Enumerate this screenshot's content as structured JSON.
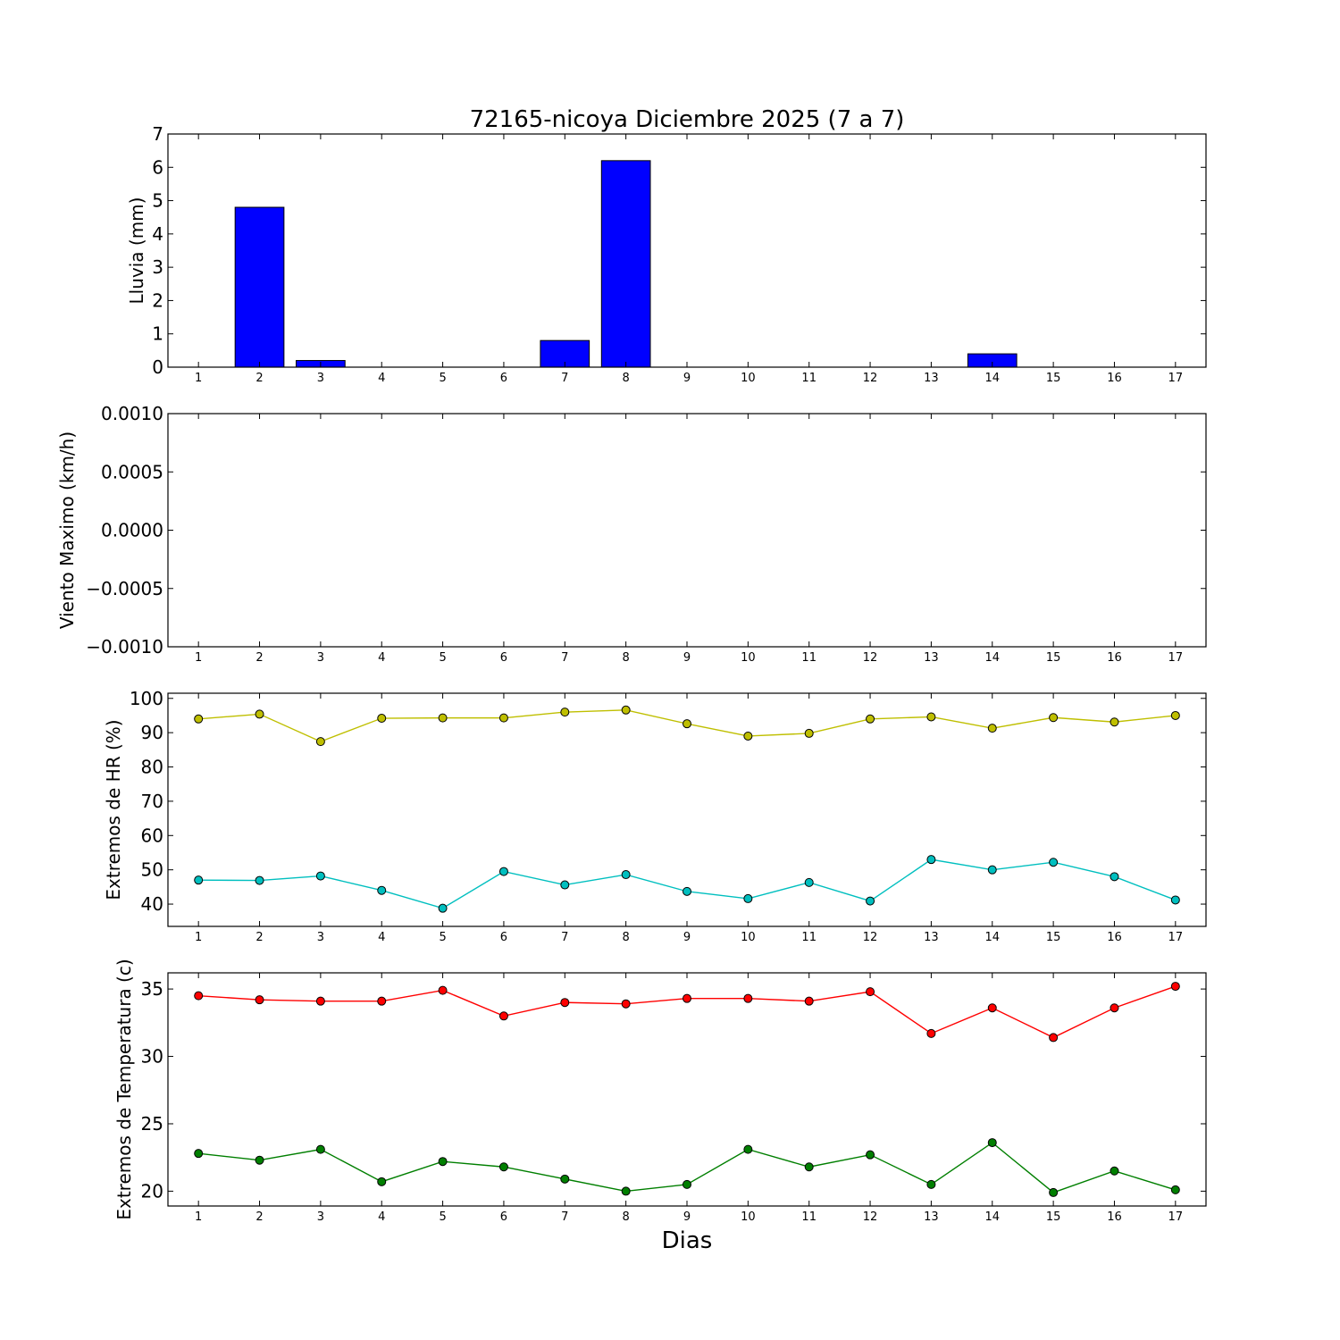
{
  "title": "72165-nicoya Diciembre 2025  (7 a 7)",
  "xlabel": "Dias",
  "chart_data": [
    {
      "type": "bar",
      "ylabel": "Lluvia (mm)",
      "x": [
        1,
        2,
        3,
        4,
        5,
        6,
        7,
        8,
        9,
        10,
        11,
        12,
        13,
        14,
        15,
        16,
        17
      ],
      "values": [
        0,
        4.8,
        0.2,
        0,
        0,
        0,
        0.8,
        6.2,
        0,
        0,
        0,
        0,
        0,
        0.4,
        0,
        0,
        0
      ],
      "color": "#0000ff",
      "ylim": [
        0,
        7
      ],
      "yticks": [
        0,
        1,
        2,
        3,
        4,
        5,
        6,
        7
      ],
      "ytick_labels": [
        "0",
        "1",
        "2",
        "3",
        "4",
        "5",
        "6",
        "7"
      ],
      "xlim": [
        0.5,
        17.5
      ]
    },
    {
      "type": "line",
      "ylabel": "Viento Maximo (km/h)",
      "x": [
        1,
        2,
        3,
        4,
        5,
        6,
        7,
        8,
        9,
        10,
        11,
        12,
        13,
        14,
        15,
        16,
        17
      ],
      "series": [],
      "ylim": [
        -0.001,
        0.001
      ],
      "yticks": [
        -0.001,
        -0.0005,
        0,
        0.0005,
        0.001
      ],
      "ytick_labels": [
        "−0.0010",
        "−0.0005",
        "0.0000",
        "0.0005",
        "0.0010"
      ],
      "xlim": [
        0.5,
        17.5
      ]
    },
    {
      "type": "line",
      "ylabel": "Extremos de HR (%)",
      "x": [
        1,
        2,
        3,
        4,
        5,
        6,
        7,
        8,
        9,
        10,
        11,
        12,
        13,
        14,
        15,
        16,
        17
      ],
      "series": [
        {
          "values": [
            94,
            95.4,
            87.4,
            94.2,
            94.3,
            94.3,
            96,
            96.6,
            92.6,
            89,
            89.8,
            94,
            94.6,
            91.3,
            94.4,
            93.1,
            95
          ],
          "color": "#bfbf00"
        },
        {
          "values": [
            47,
            46.9,
            48.2,
            44,
            38.8,
            49.5,
            45.6,
            48.6,
            43.7,
            41.6,
            46.3,
            40.9,
            53,
            50,
            52.2,
            48,
            41.2
          ],
          "color": "#00bfbf"
        }
      ],
      "ylim": [
        33.5,
        101.5
      ],
      "yticks": [
        40,
        50,
        60,
        70,
        80,
        90,
        100
      ],
      "ytick_labels": [
        "40",
        "50",
        "60",
        "70",
        "80",
        "90",
        "100"
      ],
      "xlim": [
        0.5,
        17.5
      ]
    },
    {
      "type": "line",
      "ylabel": "Extremos de Temperatura (c)",
      "x": [
        1,
        2,
        3,
        4,
        5,
        6,
        7,
        8,
        9,
        10,
        11,
        12,
        13,
        14,
        15,
        16,
        17
      ],
      "series": [
        {
          "values": [
            34.5,
            34.2,
            34.1,
            34.1,
            34.9,
            33,
            34,
            33.9,
            34.3,
            34.3,
            34.1,
            34.8,
            31.7,
            33.6,
            31.4,
            33.6,
            35.2
          ],
          "color": "#ff0000"
        },
        {
          "values": [
            22.8,
            22.3,
            23.1,
            20.7,
            22.2,
            21.8,
            20.9,
            20,
            20.5,
            23.1,
            21.8,
            22.7,
            20.5,
            23.6,
            19.9,
            21.5,
            20.1
          ],
          "color": "#007f00"
        }
      ],
      "ylim": [
        18.9,
        36.2
      ],
      "yticks": [
        20,
        25,
        30,
        35
      ],
      "ytick_labels": [
        "20",
        "25",
        "30",
        "35"
      ],
      "xlim": [
        0.5,
        17.5
      ]
    }
  ]
}
